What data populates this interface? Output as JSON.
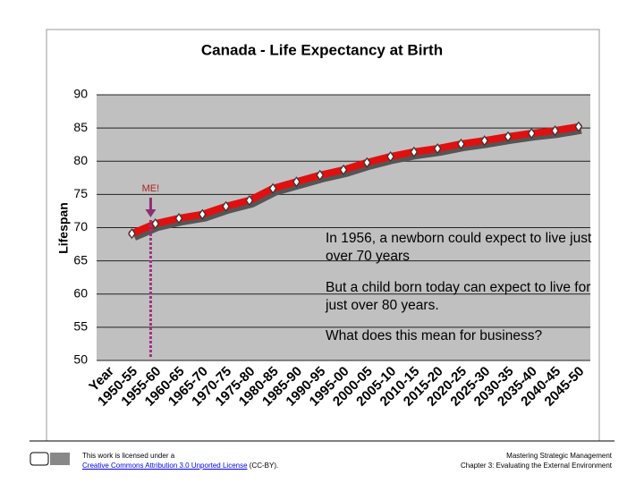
{
  "chart_data": {
    "type": "line",
    "title": "Canada - Life Expectancy at Birth",
    "y_label": "Lifespan",
    "categories": [
      "Year",
      "1950-55",
      "1955-60",
      "1960-65",
      "1965-70",
      "1970-75",
      "1975-80",
      "1980-85",
      "1985-90",
      "1990-95",
      "1995-00",
      "2000-05",
      "2005-10",
      "2010-15",
      "2015-20",
      "2020-25",
      "2025-30",
      "2030-35",
      "2035-40",
      "2040-45",
      "2045-50"
    ],
    "series": [
      {
        "name": "Lifespan",
        "color": "#e01010",
        "values": [
          null,
          69.1,
          70.6,
          71.4,
          72.0,
          73.2,
          74.1,
          75.9,
          76.9,
          77.9,
          78.7,
          79.8,
          80.7,
          81.4,
          81.9,
          82.6,
          83.1,
          83.7,
          84.2,
          84.6,
          85.2
        ]
      }
    ],
    "ylim": [
      50,
      90
    ],
    "yticks": [
      50,
      55,
      60,
      65,
      70,
      75,
      80,
      85,
      90
    ],
    "grid": true,
    "annotation": "ME!"
  },
  "notes": [
    "In 1956, a newborn could expect to live just over 70 years",
    "But a child born today can expect to live for just over 80 years.",
    "What does this mean for business?"
  ],
  "footer": {
    "license_prefix": "This work is licensed under a",
    "license_link": "Creative Commons Attribution 3.0 Unported License",
    "license_suffix": "(CC-BY).",
    "book": "Mastering Strategic Management",
    "chapter": "Chapter 3: Evaluating the External Environment"
  }
}
